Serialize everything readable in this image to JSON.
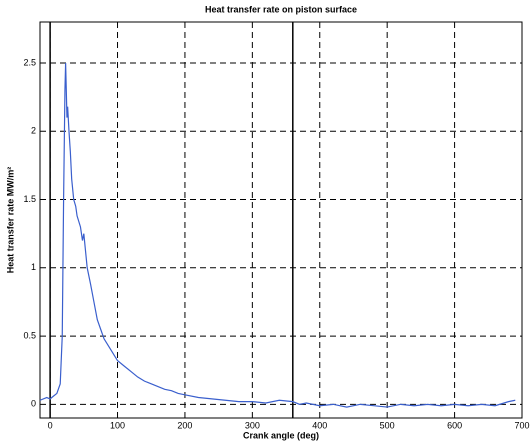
{
  "chart_data": {
    "type": "line",
    "title": "Heat transfer rate on piston surface",
    "x_label": "Crank angle (deg)",
    "y_label": "Heat transfer rate MW/m²",
    "xlim": [
      -15,
      700
    ],
    "ylim": [
      -0.1,
      2.8
    ],
    "xticks": [
      0,
      100,
      200,
      300,
      400,
      500,
      600,
      700
    ],
    "yticks": [
      0,
      0.5,
      1,
      1.5,
      2,
      2.5
    ],
    "grid": true,
    "vlines": [
      0,
      360
    ],
    "series": [
      {
        "color": "#3a5fcd",
        "x": [
          -15,
          -5,
          0,
          5,
          10,
          15,
          18,
          20,
          22,
          23,
          25,
          26,
          28,
          30,
          32,
          35,
          38,
          40,
          45,
          48,
          50,
          55,
          60,
          65,
          70,
          75,
          80,
          90,
          100,
          110,
          120,
          130,
          140,
          150,
          160,
          170,
          180,
          190,
          200,
          220,
          240,
          260,
          280,
          300,
          320,
          340,
          360,
          370,
          380,
          400,
          420,
          440,
          460,
          480,
          500,
          520,
          540,
          560,
          580,
          600,
          620,
          640,
          660,
          680,
          690
        ],
        "values": [
          0.03,
          0.05,
          0.04,
          0.06,
          0.08,
          0.15,
          0.5,
          1.5,
          2.3,
          2.5,
          2.1,
          2.18,
          2.0,
          1.85,
          1.65,
          1.5,
          1.45,
          1.38,
          1.3,
          1.2,
          1.25,
          1.0,
          0.88,
          0.75,
          0.62,
          0.55,
          0.48,
          0.4,
          0.32,
          0.28,
          0.24,
          0.2,
          0.17,
          0.15,
          0.13,
          0.11,
          0.1,
          0.08,
          0.07,
          0.05,
          0.04,
          0.03,
          0.02,
          0.02,
          0.01,
          0.03,
          0.02,
          0.0,
          0.01,
          -0.01,
          0.0,
          -0.02,
          0.0,
          -0.01,
          -0.02,
          0.0,
          -0.01,
          0.0,
          -0.01,
          0.0,
          -0.01,
          0.0,
          -0.01,
          0.02,
          0.03
        ]
      }
    ]
  }
}
